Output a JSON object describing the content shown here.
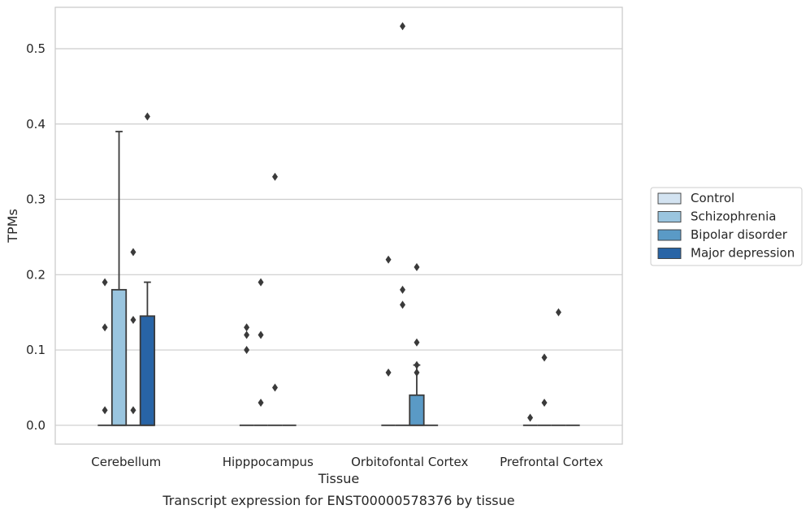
{
  "chart_data": {
    "type": "boxplot",
    "xlabel": "Tissue",
    "ylabel": "TPMs",
    "caption": "Transcript expression for ENST00000578376 by tissue",
    "ylim": [
      -0.025,
      0.555
    ],
    "yticks": [
      0.0,
      0.1,
      0.2,
      0.3,
      0.4,
      0.5
    ],
    "ytick_labels": [
      "0.0",
      "0.1",
      "0.2",
      "0.3",
      "0.4",
      "0.5"
    ],
    "grid": true,
    "legend_position": "right",
    "categories": [
      "Cerebellum",
      "Hipppocampus",
      "Orbitofontal Cortex",
      "Prefrontal Cortex"
    ],
    "series": [
      {
        "name": "Control",
        "color": "#d3e3f1",
        "boxes": [
          {
            "q1": 0,
            "median": 0,
            "q3": 0,
            "whisker_low": 0,
            "whisker_high": 0,
            "outliers": [
              0.19,
              0.13,
              0.02
            ]
          },
          {
            "q1": 0,
            "median": 0,
            "q3": 0,
            "whisker_low": 0,
            "whisker_high": 0,
            "outliers": [
              0.13,
              0.12,
              0.1
            ]
          },
          {
            "q1": 0,
            "median": 0,
            "q3": 0,
            "whisker_low": 0,
            "whisker_high": 0,
            "outliers": [
              0.22,
              0.07
            ]
          },
          {
            "q1": 0,
            "median": 0,
            "q3": 0,
            "whisker_low": 0,
            "whisker_high": 0,
            "outliers": [
              0.01
            ]
          }
        ]
      },
      {
        "name": "Schizophrenia",
        "color": "#9ac5df",
        "boxes": [
          {
            "q1": 0,
            "median": 0,
            "q3": 0.18,
            "whisker_low": 0,
            "whisker_high": 0.39,
            "outliers": []
          },
          {
            "q1": 0,
            "median": 0,
            "q3": 0,
            "whisker_low": 0,
            "whisker_high": 0,
            "outliers": [
              0.19,
              0.12,
              0.03
            ]
          },
          {
            "q1": 0,
            "median": 0,
            "q3": 0,
            "whisker_low": 0,
            "whisker_high": 0,
            "outliers": [
              0.53,
              0.18,
              0.16
            ]
          },
          {
            "q1": 0,
            "median": 0,
            "q3": 0,
            "whisker_low": 0,
            "whisker_high": 0,
            "outliers": [
              0.09,
              0.03
            ]
          }
        ]
      },
      {
        "name": "Bipolar disorder",
        "color": "#5a9ac6",
        "boxes": [
          {
            "q1": 0,
            "median": 0,
            "q3": 0,
            "whisker_low": 0,
            "whisker_high": 0,
            "outliers": [
              0.23,
              0.14,
              0.02
            ]
          },
          {
            "q1": 0,
            "median": 0,
            "q3": 0,
            "whisker_low": 0,
            "whisker_high": 0,
            "outliers": [
              0.33,
              0.05
            ]
          },
          {
            "q1": 0,
            "median": 0,
            "q3": 0.04,
            "whisker_low": 0,
            "whisker_high": 0.08,
            "outliers": [
              0.21,
              0.11,
              0.08,
              0.07
            ]
          },
          {
            "q1": 0,
            "median": 0,
            "q3": 0,
            "whisker_low": 0,
            "whisker_high": 0,
            "outliers": [
              0.15
            ]
          }
        ]
      },
      {
        "name": "Major depression",
        "color": "#2864a6",
        "boxes": [
          {
            "q1": 0,
            "median": 0,
            "q3": 0.145,
            "whisker_low": 0,
            "whisker_high": 0.19,
            "outliers": [
              0.41
            ]
          },
          {
            "q1": 0,
            "median": 0,
            "q3": 0,
            "whisker_low": 0,
            "whisker_high": 0,
            "outliers": []
          },
          {
            "q1": 0,
            "median": 0,
            "q3": 0,
            "whisker_low": 0,
            "whisker_high": 0,
            "outliers": []
          },
          {
            "q1": 0,
            "median": 0,
            "q3": 0,
            "whisker_low": 0,
            "whisker_high": 0,
            "outliers": []
          }
        ]
      }
    ]
  }
}
